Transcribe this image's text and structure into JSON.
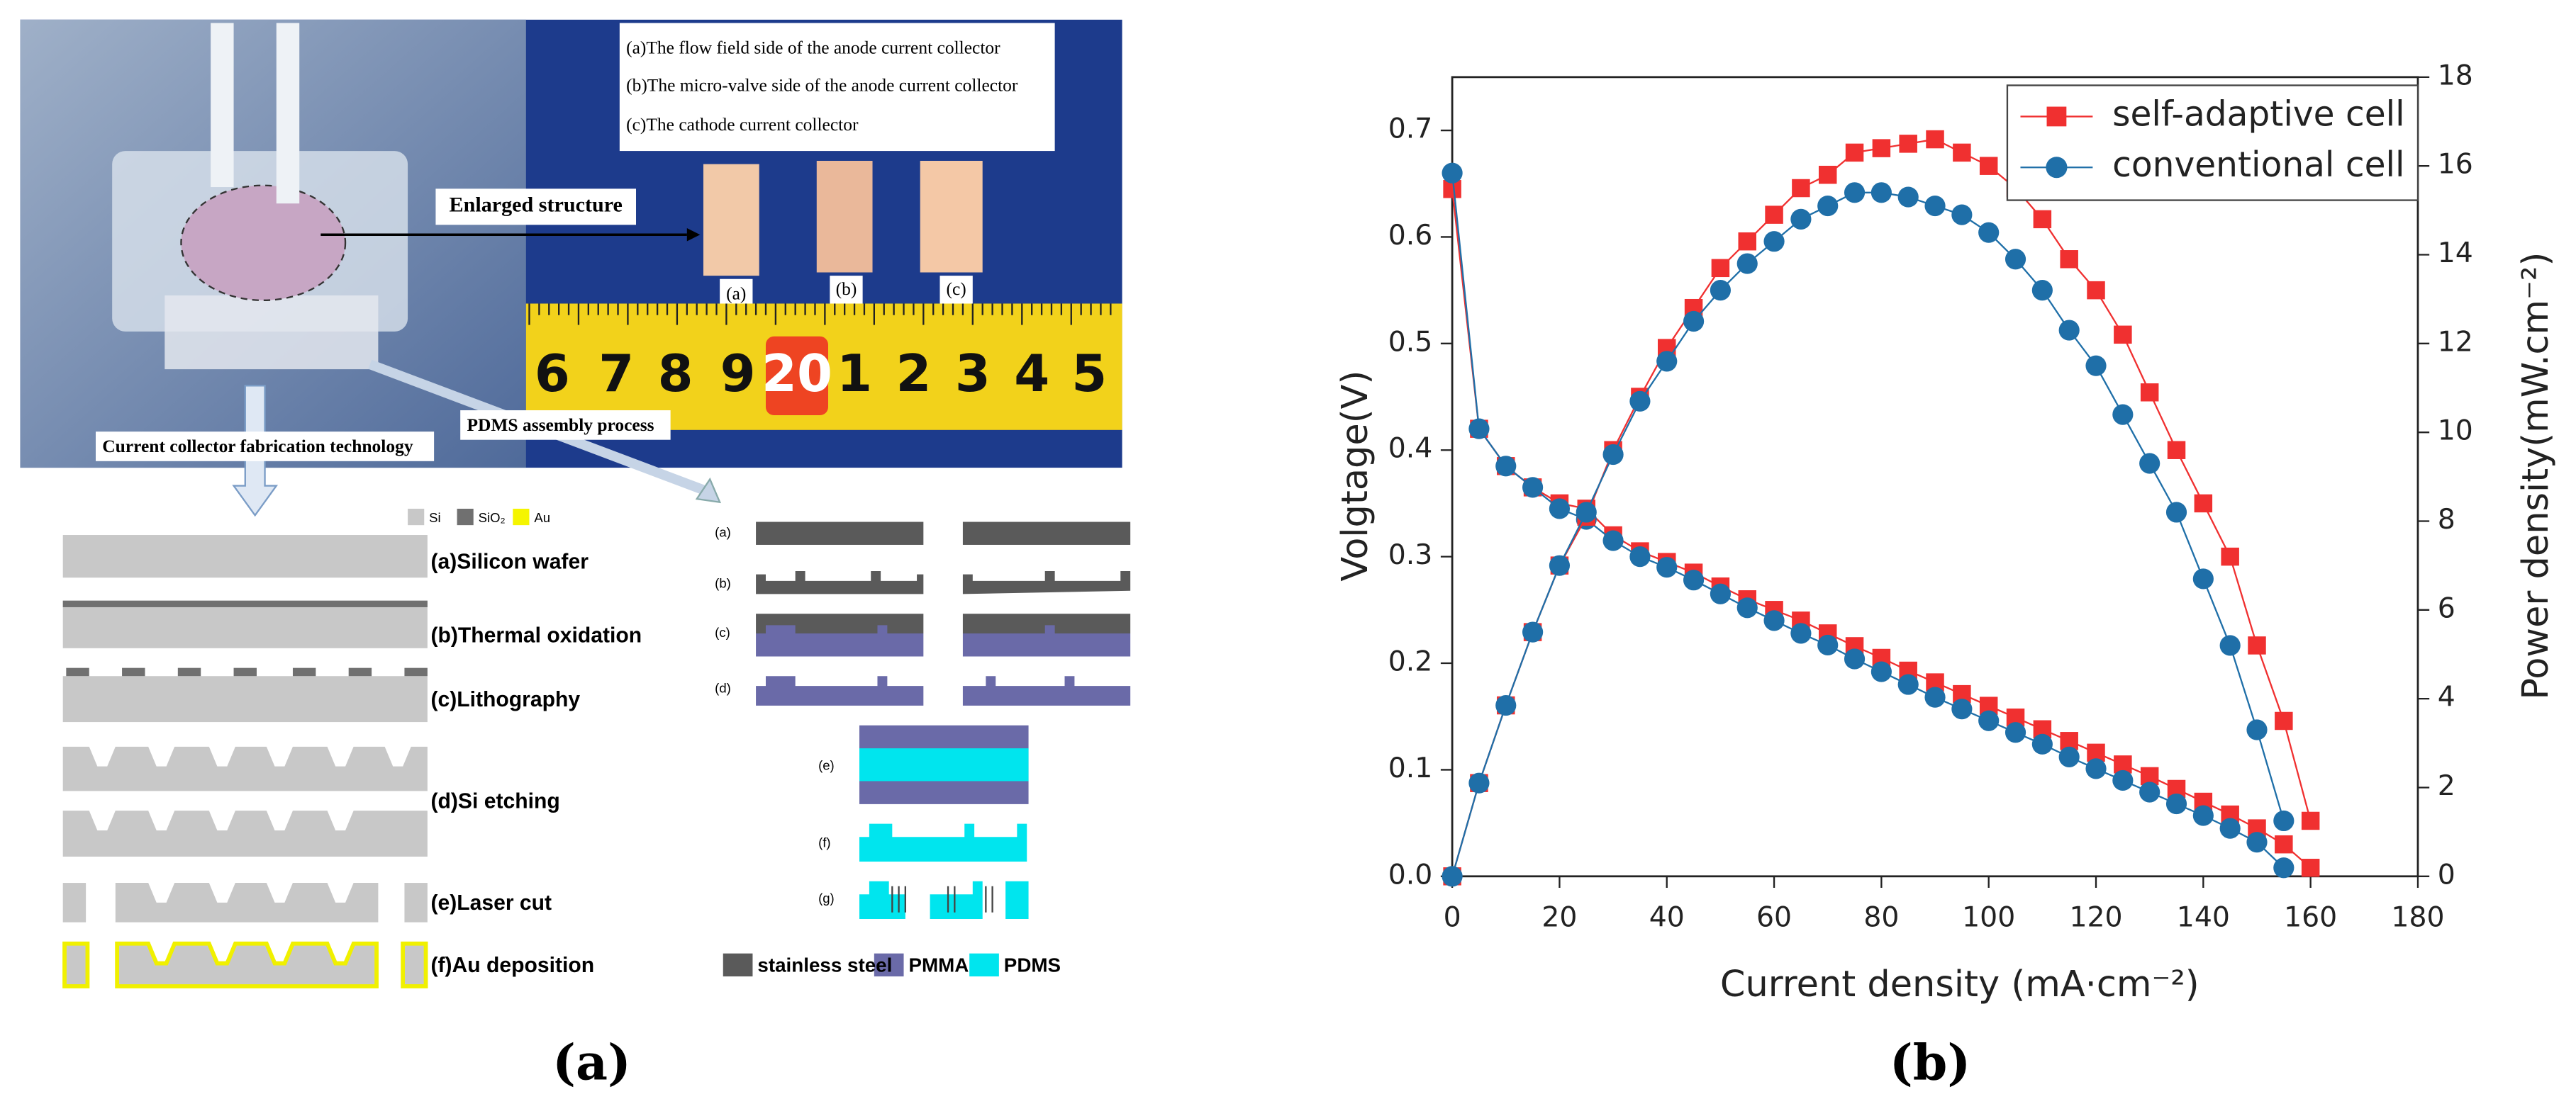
{
  "figure_a": {
    "photo_caption": [
      "(a)The flow field side of the anode current collector",
      "(b)The micro-valve side of the anode current collector",
      "(c)The cathode current collector"
    ],
    "enlarged_label": "Enlarged structure",
    "chip_labels": [
      "(a)",
      "(b)",
      "(c)"
    ],
    "ruler_numbers": [
      "6",
      "7",
      "8",
      "9",
      "20",
      "1",
      "2",
      "3",
      "4",
      "5"
    ],
    "fab_title": "Current collector fabrication technology",
    "pdms_title": "PDMS assembly process",
    "material_legend": [
      "Si",
      "SiO₂",
      "Au"
    ],
    "fab_steps": [
      "(a)Silicon wafer",
      "(b)Thermal oxidation",
      "(c)Lithography",
      "(d)Si etching",
      "(e)Laser cut",
      "(f)Au deposition"
    ],
    "pdms_steps": [
      "(a)",
      "(b)",
      "(c)",
      "(d)",
      "(e)",
      "(f)",
      "(g)"
    ],
    "pdms_legend": [
      "stainless steel",
      "PMMA",
      "PDMS"
    ],
    "panel_label": "(a)"
  },
  "chart_data": {
    "type": "line",
    "panel_label": "(b)",
    "xlabel": "Current density (mA·cm⁻²)",
    "ylabel": "Volgtage(V)",
    "y2label": "Power density(mW.cm⁻²)",
    "x": [
      0,
      5,
      10,
      15,
      20,
      25,
      30,
      35,
      40,
      45,
      50,
      55,
      60,
      65,
      70,
      75,
      80,
      85,
      90,
      95,
      100,
      105,
      110,
      115,
      120,
      125,
      130,
      135,
      140,
      145,
      150,
      155,
      160
    ],
    "series": [
      {
        "name": "self-adaptive cell",
        "color": "#f03030",
        "marker": "square",
        "axis": "y",
        "values": [
          0.645,
          0.42,
          0.385,
          0.365,
          0.35,
          0.345,
          0.32,
          0.305,
          0.295,
          0.285,
          0.272,
          0.26,
          0.25,
          0.24,
          0.228,
          0.216,
          0.205,
          0.193,
          0.182,
          0.171,
          0.16,
          0.149,
          0.138,
          0.127,
          0.116,
          0.105,
          0.094,
          0.082,
          0.07,
          0.058,
          0.045,
          0.03,
          0.008
        ]
      },
      {
        "name": "conventional cell",
        "color": "#1f6fa8",
        "marker": "circle",
        "axis": "y",
        "values": [
          0.66,
          0.42,
          0.385,
          0.365,
          0.345,
          0.335,
          0.315,
          0.3,
          0.29,
          0.278,
          0.265,
          0.252,
          0.24,
          0.228,
          0.217,
          0.204,
          0.192,
          0.18,
          0.168,
          0.157,
          0.146,
          0.135,
          0.124,
          0.112,
          0.101,
          0.09,
          0.079,
          0.068,
          0.057,
          0.045,
          0.032,
          0.008,
          null
        ]
      },
      {
        "color": "#f03030",
        "marker": "square",
        "axis": "y2",
        "values": [
          0,
          2.1,
          3.85,
          5.5,
          7.0,
          8.1,
          9.6,
          10.8,
          11.9,
          12.8,
          13.7,
          14.3,
          14.9,
          15.5,
          15.8,
          16.3,
          16.4,
          16.5,
          16.6,
          16.3,
          16.0,
          15.5,
          14.8,
          13.9,
          13.2,
          12.2,
          10.9,
          9.6,
          8.4,
          7.2,
          5.2,
          3.5,
          1.25
        ]
      },
      {
        "color": "#1f6fa8",
        "marker": "circle",
        "axis": "y2",
        "values": [
          0,
          2.1,
          3.85,
          5.5,
          7.0,
          8.2,
          9.5,
          10.7,
          11.6,
          12.5,
          13.2,
          13.8,
          14.3,
          14.8,
          15.1,
          15.4,
          15.4,
          15.3,
          15.1,
          14.9,
          14.5,
          13.9,
          13.2,
          12.3,
          11.5,
          10.4,
          9.3,
          8.2,
          6.7,
          5.2,
          3.3,
          1.25,
          null
        ]
      }
    ],
    "xlim": [
      0,
      180
    ],
    "xticks": [
      0,
      20,
      40,
      60,
      80,
      100,
      120,
      140,
      160,
      180
    ],
    "ylim": [
      0,
      0.75
    ],
    "yticks": [
      {
        "value": 0,
        "label": "0.0"
      },
      0.1,
      0.2,
      0.3,
      0.4,
      0.5,
      0.6,
      0.7
    ],
    "y2lim": [
      0,
      18
    ],
    "y2ticks": [
      0,
      2,
      4,
      6,
      8,
      10,
      12,
      14,
      16,
      18
    ],
    "legend": "upper right"
  }
}
